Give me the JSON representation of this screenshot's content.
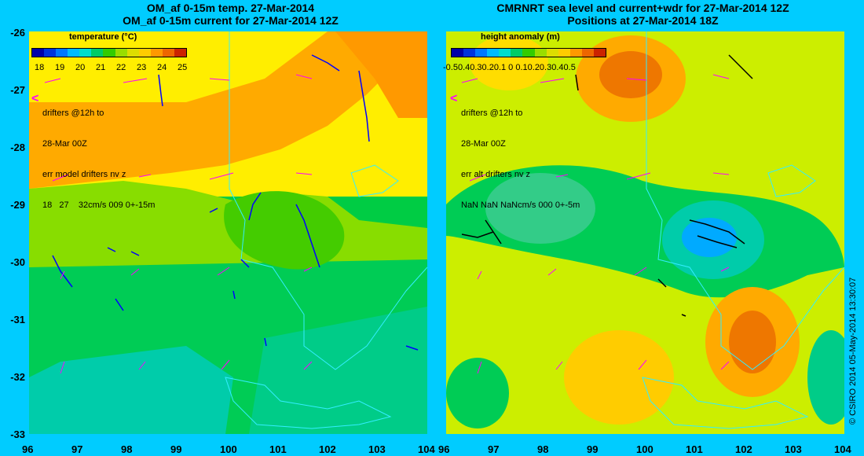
{
  "left": {
    "title_line1": "OM_af 0-15m temp. 27-Mar-2014",
    "title_line2": "OM_af 0-15m current for 27-Mar-2014 12Z",
    "colorbar_title": "temperature (°C)",
    "colorbar_ticks": [
      "18",
      "19",
      "20",
      "21",
      "22",
      "23",
      "24",
      "25"
    ],
    "colors": [
      "#0000aa",
      "#0033dd",
      "#0077ff",
      "#00bbff",
      "#00ddcc",
      "#00cc66",
      "#33cc00",
      "#99dd00",
      "#dddd00",
      "#ffcc00",
      "#ff9900",
      "#ee6600",
      "#cc2200"
    ],
    "note_line1": "drifters @12h to",
    "note_line2": "28-Mar 00Z",
    "note_line3": "err model drifters nv z",
    "note_line4": "18   27    32cm/s 009 0+-15m",
    "vector_color": "#0000ff"
  },
  "right": {
    "title_line1": "CMRNRT sea level and current+wdr for 27-Mar-2014 12Z",
    "title_line2": "Positions at 27-Mar-2014 18Z",
    "colorbar_title": "height anomaly (m)",
    "colorbar_ticks": "-0.50.40.30.20.1 0 0.10.20.30.40.5",
    "colors": [
      "#0000aa",
      "#0033dd",
      "#0077ff",
      "#00bbff",
      "#00ddcc",
      "#00cc66",
      "#33cc00",
      "#99dd00",
      "#dddd00",
      "#ffcc00",
      "#ff9900",
      "#ee6600",
      "#cc2200"
    ],
    "note_line1": "drifters @12h to",
    "note_line2": "28-Mar 00Z",
    "note_line3": "err alt drifters nv z",
    "note_line4": "NaN NaN NaNcm/s 000 0+-5m",
    "vector_color": "#000000"
  },
  "axes": {
    "y_ticks": [
      "-26",
      "-27",
      "-28",
      "-29",
      "-30",
      "-31",
      "-32",
      "-33"
    ],
    "x_ticks": [
      "96",
      "97",
      "98",
      "99",
      "100",
      "101",
      "102",
      "103",
      "104"
    ]
  },
  "less_than_marker": "<",
  "credit": "© CSIRO  2014   05-May-2014 13:30:07",
  "drifter_color": "#ff00ff",
  "coast_color": "#33eeff"
}
